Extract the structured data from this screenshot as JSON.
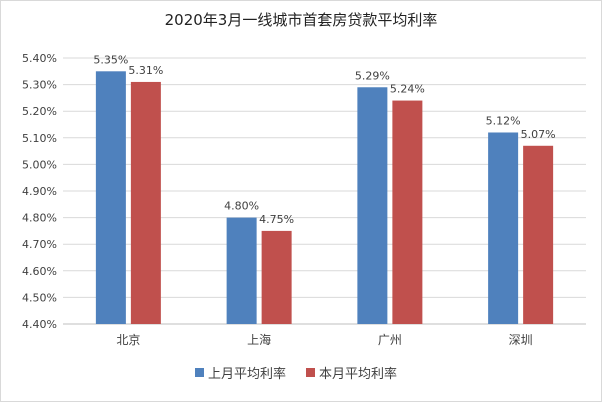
{
  "chart_data": {
    "type": "bar",
    "title": "2020年3月一线城市首套房贷款平均利率",
    "categories": [
      "北京",
      "上海",
      "广州",
      "深圳"
    ],
    "series": [
      {
        "name": "上月平均利率",
        "values": [
          5.35,
          4.8,
          5.29,
          5.12
        ],
        "labels": [
          "5.35%",
          "4.80%",
          "5.29%",
          "5.12%"
        ],
        "color": "#4F81BD"
      },
      {
        "name": "本月平均利率",
        "values": [
          5.31,
          4.75,
          5.24,
          5.07
        ],
        "labels": [
          "5.31%",
          "4.75%",
          "5.24%",
          "5.07%"
        ],
        "color": "#C0504D"
      }
    ],
    "ylim": [
      4.4,
      5.4
    ],
    "yticks": [
      "4.40%",
      "4.50%",
      "4.60%",
      "4.70%",
      "4.80%",
      "4.90%",
      "5.00%",
      "5.10%",
      "5.20%",
      "5.30%",
      "5.40%"
    ],
    "grid": true,
    "legend_position": "bottom"
  }
}
